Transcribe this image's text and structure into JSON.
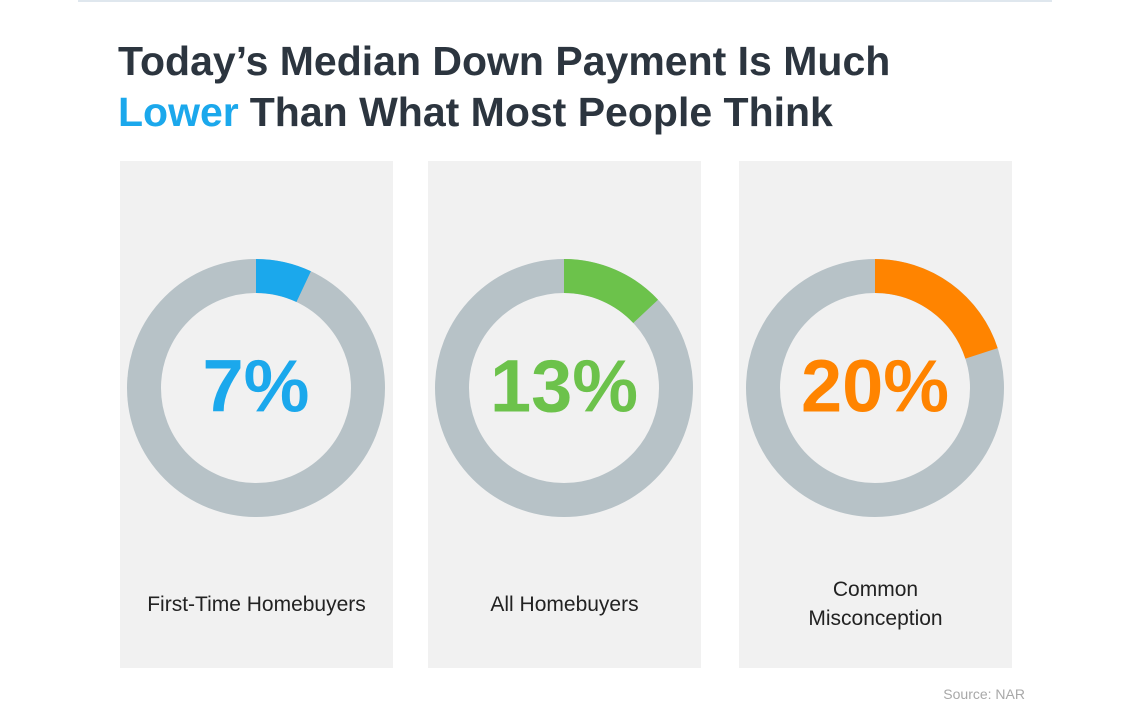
{
  "title": {
    "line1": "Today’s Median Down Payment Is Much",
    "highlight": "Lower",
    "line2": "Than What Most People Think"
  },
  "source": "Source: NAR",
  "chart_data": [
    {
      "type": "donut",
      "label": "First-Time Homebuyers",
      "values": [
        7
      ],
      "value_labels": [
        "7%"
      ],
      "color": "#1ba8ec"
    },
    {
      "type": "donut",
      "label": "All Homebuyers",
      "values": [
        13
      ],
      "value_labels": [
        "13%"
      ],
      "color": "#6cc24b"
    },
    {
      "type": "donut",
      "label": "Common Misconception",
      "values": [
        20
      ],
      "value_labels": [
        "20%"
      ],
      "color": "#ff8400"
    }
  ]
}
